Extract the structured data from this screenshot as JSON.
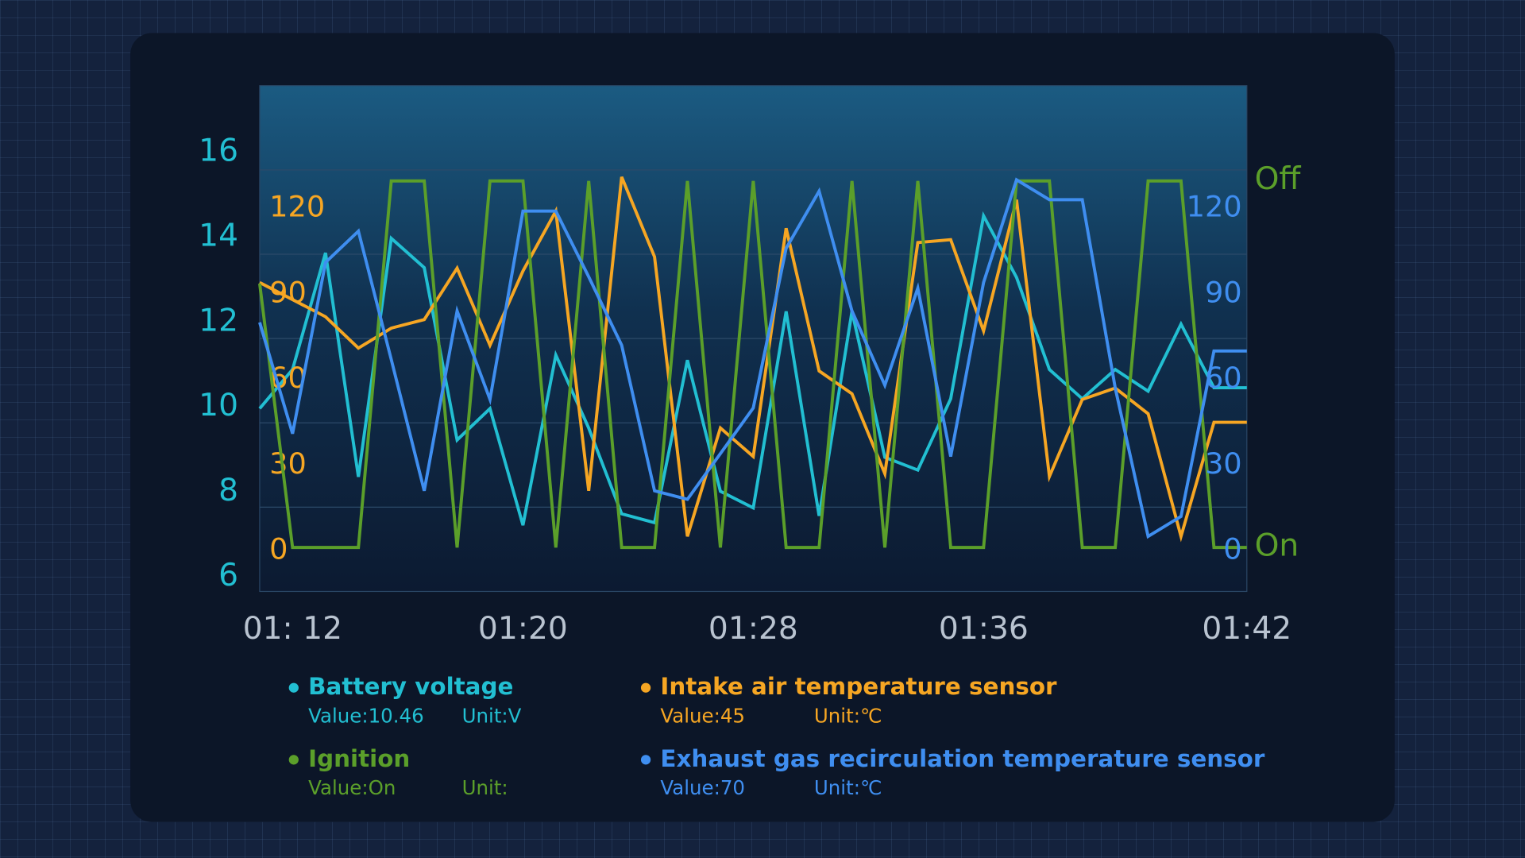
{
  "chart_data": {
    "type": "line",
    "categories": [
      null,
      "01: 12",
      null,
      null,
      null,
      null,
      null,
      null,
      "01:20",
      null,
      null,
      null,
      null,
      null,
      null,
      "01:28",
      null,
      null,
      null,
      null,
      null,
      null,
      "01:36",
      null,
      null,
      null,
      null,
      null,
      null,
      null,
      "01:42"
    ],
    "series": [
      {
        "name": "Battery voltage",
        "color": "#22bfd2",
        "value_label": "Value:10.46",
        "unit_label": "Unit:V",
        "tick_side": "outer-left",
        "ylim": [
          5.66,
          17.58
        ],
        "yticks": [
          6,
          8,
          10,
          12,
          14,
          16
        ],
        "values": [
          9.97,
          10.89,
          13.64,
          8.36,
          13.98,
          13.29,
          9.23,
          9.97,
          7.22,
          11.23,
          9.51,
          7.49,
          7.28,
          11.11,
          8.02,
          7.63,
          12.26,
          7.44,
          12.26,
          8.82,
          8.52,
          10.2,
          14.51,
          13.06,
          10.89,
          10.2,
          10.89,
          10.38,
          11.96,
          10.46,
          10.46
        ]
      },
      {
        "name": "Intake air temperature sensor",
        "color": "#f6a623",
        "value_label": "Value:45",
        "unit_label": "Unit:℃",
        "tick_side": "inner-left",
        "ylim": [
          -14.3,
          163
        ],
        "yticks": [
          0,
          30,
          60,
          90,
          120
        ],
        "values": [
          94,
          88,
          82,
          71,
          78,
          81,
          99,
          72,
          98,
          119,
          21,
          131,
          103,
          5,
          43,
          33,
          113,
          63,
          55,
          27,
          108,
          109,
          77,
          123,
          26,
          53,
          57,
          48,
          5,
          45,
          45
        ]
      },
      {
        "name": "Ignition",
        "color": "#5b9f2a",
        "value_label": "Value:On",
        "unit_label": "Unit:",
        "tick_side": "outer-right",
        "ylim": [
          -0.12,
          1.26
        ],
        "yticks": [
          {
            "value": 0,
            "label": "On"
          },
          {
            "value": 1,
            "label": "Off"
          }
        ],
        "values": [
          0.72,
          0,
          0,
          0,
          1,
          1,
          0,
          1,
          1,
          0,
          1,
          0,
          0,
          1,
          0,
          1,
          0,
          0,
          1,
          0,
          1,
          0,
          0,
          1,
          1,
          0,
          0,
          1,
          1,
          0,
          0
        ]
      },
      {
        "name": "Exhaust gas recirculation temperature sensor",
        "color": "#3f8ef0",
        "value_label": "Value:70",
        "unit_label": "Unit:℃",
        "tick_side": "inner-right",
        "ylim": [
          -14.3,
          163
        ],
        "yticks": [
          0,
          30,
          60,
          90,
          120
        ],
        "values": [
          80,
          41,
          101,
          112,
          67,
          21,
          84,
          53,
          119,
          119,
          96,
          72,
          21,
          18,
          34,
          50,
          106,
          126,
          84,
          58,
          92,
          33,
          94,
          130,
          123,
          123,
          57,
          5,
          12,
          70,
          70
        ]
      }
    ]
  }
}
